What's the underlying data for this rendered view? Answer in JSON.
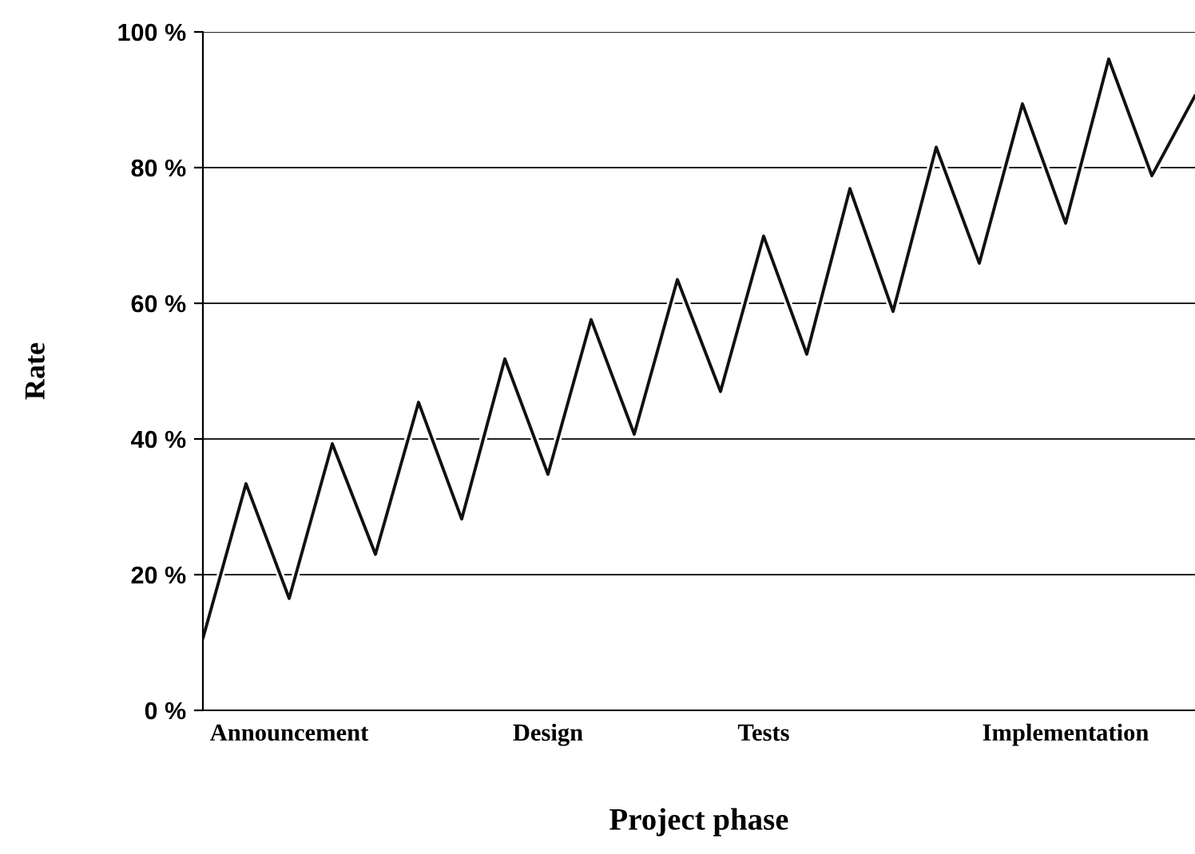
{
  "chart_data": {
    "type": "line",
    "xlabel": "Project phase",
    "ylabel": "Rate",
    "categories": [
      null,
      null,
      "Announcement",
      null,
      null,
      null,
      null,
      null,
      "Design",
      null,
      null,
      null,
      null,
      "Tests",
      null,
      null,
      null,
      null,
      null,
      null,
      "Implementation",
      null,
      null,
      null
    ],
    "series": [
      {
        "color": "#111111",
        "values": [
          10.6,
          33.4,
          16.5,
          39.3,
          23,
          45.4,
          28.2,
          51.8,
          34.8,
          57.6,
          40.7,
          63.5,
          47,
          69.9,
          52.5,
          76.9,
          58.8,
          83,
          65.9,
          89.4,
          71.8,
          96,
          78.8,
          90.6
        ]
      }
    ],
    "ylim": [
      0,
      100
    ],
    "yticks": [
      {
        "value": 0,
        "label": "0 %"
      },
      {
        "value": 20,
        "label": "20 %"
      },
      {
        "value": 40,
        "label": "40 %"
      },
      {
        "value": 60,
        "label": "60 %"
      },
      {
        "value": 80,
        "label": "80 %"
      },
      {
        "value": 100,
        "label": "100 %"
      }
    ],
    "grid": "y",
    "marker": "none",
    "line_style": "solid",
    "legend": false
  }
}
